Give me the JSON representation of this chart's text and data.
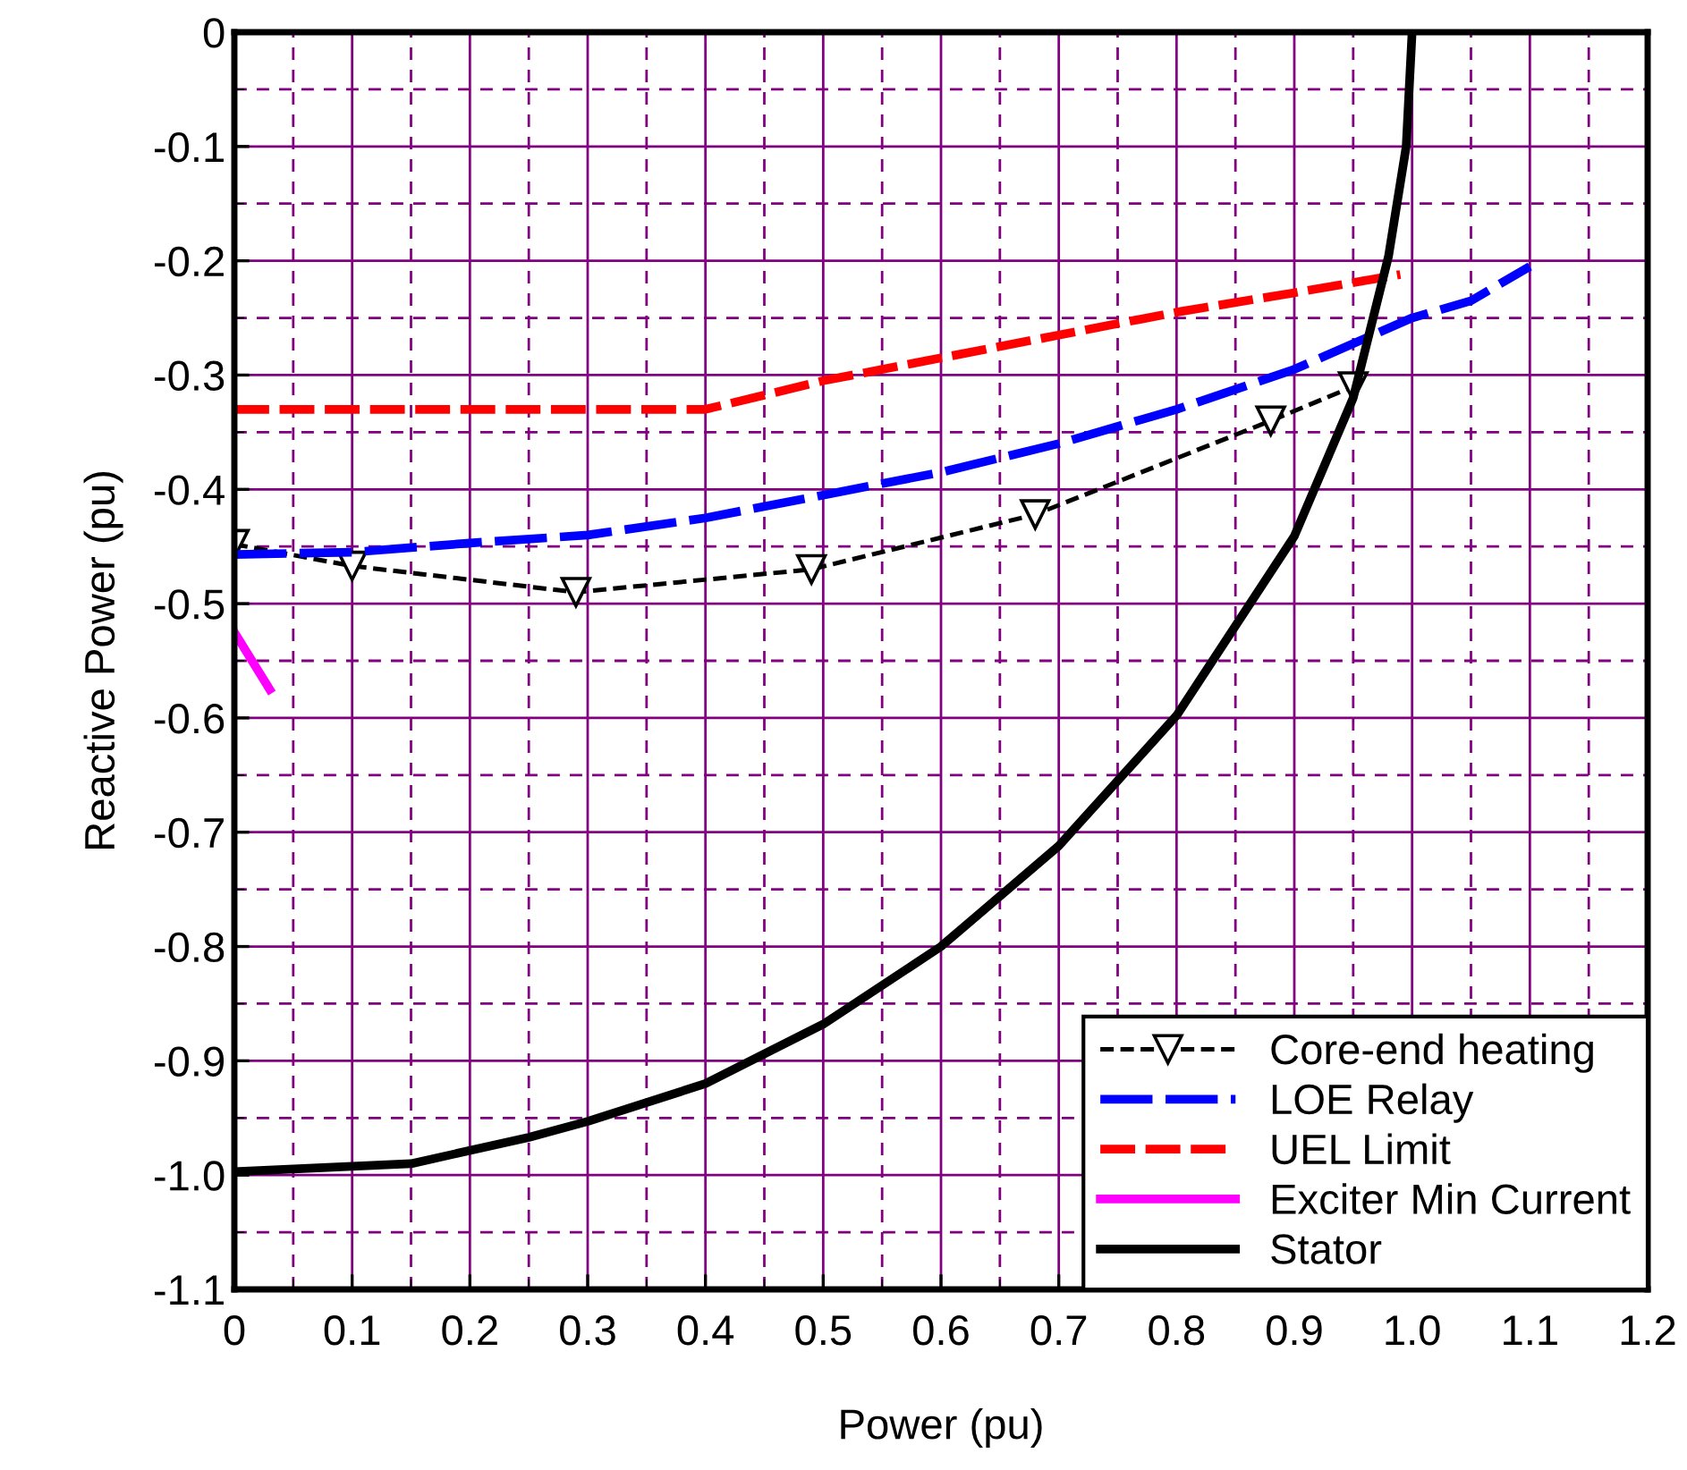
{
  "chart_data": {
    "type": "line",
    "xlabel": "Power (pu)",
    "ylabel": "Reactive Power (pu)",
    "xlim": [
      0,
      1.2
    ],
    "ylim": [
      -1.1,
      0
    ],
    "xticks": [
      0,
      {
        "value": 0.05,
        "label": null
      },
      0.1,
      {
        "value": 0.15,
        "label": null
      },
      0.2,
      {
        "value": 0.25,
        "label": null
      },
      0.3,
      {
        "value": 0.35,
        "label": null
      },
      0.4,
      {
        "value": 0.45,
        "label": null
      },
      0.5,
      {
        "value": 0.55,
        "label": null
      },
      0.6,
      {
        "value": 0.65,
        "label": null
      },
      0.7,
      {
        "value": 0.75,
        "label": null
      },
      0.8,
      {
        "value": 0.85,
        "label": null
      },
      0.9,
      {
        "value": 0.95,
        "label": null
      },
      {
        "value": 1,
        "label": "1.0"
      },
      {
        "value": 1.05,
        "label": null
      },
      1.1,
      {
        "value": 1.15,
        "label": null
      },
      1.2
    ],
    "yticks": [
      -1.1,
      {
        "value": -1.05,
        "label": null
      },
      {
        "value": -1,
        "label": "-1.0"
      },
      {
        "value": -0.95,
        "label": null
      },
      -0.9,
      {
        "value": -0.85,
        "label": null
      },
      -0.8,
      {
        "value": -0.75,
        "label": null
      },
      -0.7,
      {
        "value": -0.65,
        "label": null
      },
      -0.6,
      {
        "value": -0.55,
        "label": null
      },
      -0.5,
      {
        "value": -0.45,
        "label": null
      },
      -0.4,
      {
        "value": -0.35,
        "label": null
      },
      -0.3,
      {
        "value": -0.25,
        "label": null
      },
      -0.2,
      {
        "value": -0.15,
        "label": null
      },
      -0.1,
      {
        "value": -0.05,
        "label": null
      },
      0
    ],
    "grid": true,
    "legend": "bottom right",
    "series": [
      {
        "name": "Core-end heating",
        "color": "#000000",
        "marker": "triangle",
        "line_style": "dashed",
        "x": [
          0,
          0.1,
          0.29,
          0.49,
          0.68,
          0.88,
          0.95
        ],
        "values": [
          -0.448,
          -0.467,
          -0.49,
          -0.47,
          -0.422,
          -0.34,
          -0.31
        ]
      },
      {
        "name": "LOE Relay",
        "color": "#0000ff",
        "line_style": "dashed",
        "x": [
          0,
          0.1,
          0.2,
          0.3,
          0.4,
          0.5,
          0.6,
          0.7,
          0.8,
          0.9,
          1.0,
          1.05,
          1.1
        ],
        "values": [
          -0.457,
          -0.455,
          -0.447,
          -0.44,
          -0.425,
          -0.405,
          -0.385,
          -0.36,
          -0.33,
          -0.295,
          -0.25,
          -0.235,
          -0.205
        ]
      },
      {
        "name": "UEL Limit",
        "color": "#ff0000",
        "line_style": "dashed",
        "x": [
          0,
          0.4,
          0.5,
          0.6,
          0.7,
          0.8,
          0.9,
          0.99
        ],
        "values": [
          -0.33,
          -0.33,
          -0.305,
          -0.285,
          -0.265,
          -0.245,
          -0.228,
          -0.212
        ]
      },
      {
        "name": "Exciter Min Current",
        "color": "#ff00ff",
        "line_style": "solid",
        "x": [
          0,
          0.015,
          0.03
        ],
        "values": [
          -0.525,
          -0.55,
          -0.575
        ]
      },
      {
        "name": "Stator",
        "color": "#000000",
        "line_style": "solid",
        "x": [
          0,
          0.15,
          0.25,
          0.3,
          0.4,
          0.5,
          0.6,
          0.7,
          0.8,
          0.9,
          0.95,
          0.98,
          0.995,
          1.0
        ],
        "values": [
          -0.997,
          -0.99,
          -0.967,
          -0.953,
          -0.92,
          -0.868,
          -0.8,
          -0.712,
          -0.598,
          -0.441,
          -0.32,
          -0.196,
          -0.1,
          0
        ]
      }
    ]
  }
}
